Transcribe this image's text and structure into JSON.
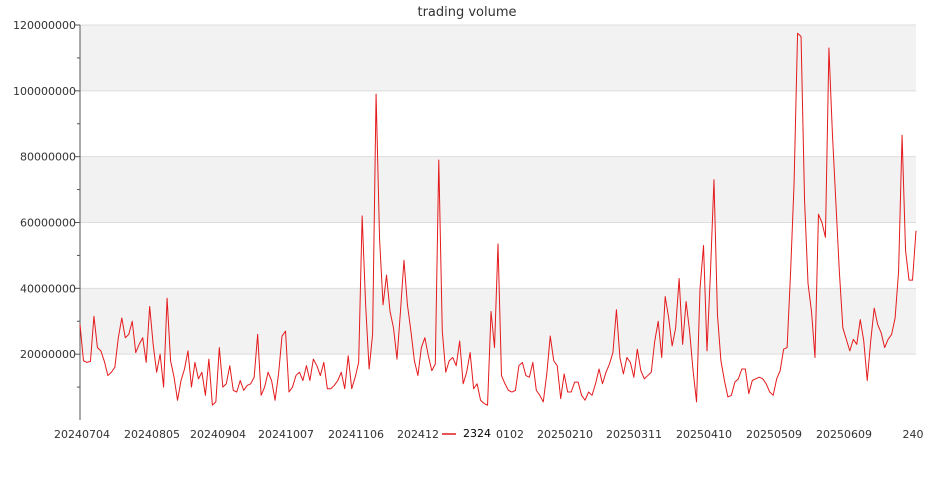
{
  "chart_data": {
    "type": "line",
    "title": "trading volume",
    "xlabel": "",
    "ylabel": "",
    "ylim": [
      0,
      120000000
    ],
    "y_ticks": [
      20000000,
      40000000,
      60000000,
      80000000,
      100000000,
      120000000
    ],
    "y_tick_labels": [
      "20000000",
      "40000000",
      "60000000",
      "80000000",
      "100000000",
      "120000000"
    ],
    "x_tick_labels": [
      "20240704",
      "20240805",
      "20240904",
      "20241007",
      "20241106",
      "202412",
      "0102",
      "20250210",
      "20250311",
      "20250410",
      "20250509",
      "20250609",
      "240"
    ],
    "grid": "horizontal, alternating light gray bands",
    "legend_position": "bottom-center",
    "series": [
      {
        "name": "2324",
        "color": "#e41a1c",
        "values": [
          29000000,
          18000000,
          17500000,
          17800000,
          31500000,
          22000000,
          21000000,
          17800000,
          13500000,
          14500000,
          16000000,
          25000000,
          31000000,
          25000000,
          26000000,
          30000000,
          20500000,
          23000000,
          25000000,
          17500000,
          34500000,
          23000000,
          14500000,
          20000000,
          10000000,
          37000000,
          18000000,
          13000000,
          6000000,
          12000000,
          15500000,
          21000000,
          10000000,
          17500000,
          12500000,
          14500000,
          7500000,
          18500000,
          4500000,
          5500000,
          22000000,
          10000000,
          11000000,
          16500000,
          9000000,
          8500000,
          12000000,
          9000000,
          10500000,
          11000000,
          13000000,
          26000000,
          7500000,
          10000000,
          14500000,
          12000000,
          6000000,
          14000000,
          25500000,
          27000000,
          8500000,
          10000000,
          13500000,
          14500000,
          12000000,
          16500000,
          12000000,
          18500000,
          16500000,
          13500000,
          17500000,
          9500000,
          9500000,
          10500000,
          12000000,
          14500000,
          9500000,
          19500000,
          9500000,
          13000000,
          17500000,
          62000000,
          35000000,
          15500000,
          26000000,
          99000000,
          55000000,
          35000000,
          44000000,
          33000000,
          28000000,
          18500000,
          33000000,
          48500000,
          35000000,
          27000000,
          18000000,
          13500000,
          22000000,
          25000000,
          19500000,
          15000000,
          17000000,
          79000000,
          27000000,
          14500000,
          18000000,
          19000000,
          16500000,
          24000000,
          11000000,
          14500000,
          20500000,
          9500000,
          11000000,
          6000000,
          5000000,
          4500000,
          33000000,
          22000000,
          53500000,
          13500000,
          11000000,
          9000000,
          8500000,
          9000000,
          16500000,
          17500000,
          13500000,
          13000000,
          17500000,
          9000000,
          7500000,
          5500000,
          14000000,
          25500000,
          18000000,
          16500000,
          6500000,
          14000000,
          8500000,
          8500000,
          11500000,
          11500000,
          7500000,
          6000000,
          8500000,
          7500000,
          11000000,
          15500000,
          11000000,
          14500000,
          17000000,
          20500000,
          33500000,
          19000000,
          14000000,
          19000000,
          17500000,
          13000000,
          21500000,
          15000000,
          12500000,
          13500000,
          14500000,
          24000000,
          30000000,
          19000000,
          37500000,
          31000000,
          22500000,
          28000000,
          43000000,
          23000000,
          36000000,
          27000000,
          15000000,
          5500000,
          40000000,
          53000000,
          21000000,
          45000000,
          73000000,
          32000000,
          18000000,
          12000000,
          7000000,
          7500000,
          11500000,
          12500000,
          15500000,
          15500000,
          8000000,
          12000000,
          12500000,
          13000000,
          12500000,
          11000000,
          8500000,
          7500000,
          12500000,
          15000000,
          21500000,
          22000000,
          45000000,
          72000000,
          117500000,
          116500000,
          67000000,
          41500000,
          33000000,
          19000000,
          62500000,
          60000000,
          55500000,
          113000000,
          87000000,
          66000000,
          45000000,
          28000000,
          24500000,
          21000000,
          24500000,
          23000000,
          30500000,
          24000000,
          12000000,
          24000000,
          34000000,
          29000000,
          26500000,
          22000000,
          24500000,
          26000000,
          31000000,
          45000000,
          86500000,
          51500000,
          42500000,
          42500000,
          57500000
        ]
      }
    ]
  }
}
